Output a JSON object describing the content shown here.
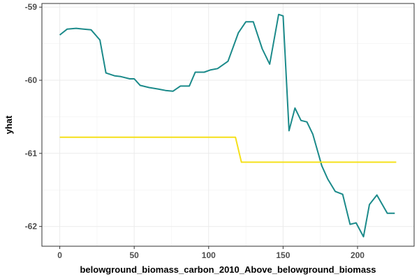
{
  "chart_data": {
    "type": "line",
    "xlabel": "belowground_biomass_carbon_2010_Above_belowground_biomass",
    "ylabel": "yhat",
    "xlim": [
      -12,
      238
    ],
    "ylim": [
      -62.27,
      -58.95
    ],
    "x_ticks": [
      0,
      50,
      100,
      150,
      200
    ],
    "x_tick_labels": [
      "0",
      "50",
      "100",
      "150",
      "200"
    ],
    "y_ticks": [
      -59,
      -60,
      -61,
      -62
    ],
    "y_tick_labels": [
      "-59",
      "-60",
      "-61",
      "-62"
    ],
    "grid": true,
    "legend": "none",
    "series": [
      {
        "color": "#1b8a8a",
        "x": [
          0,
          5,
          11,
          16,
          21,
          27,
          31,
          37,
          41,
          47,
          50,
          54,
          60,
          66,
          71,
          76,
          81,
          87,
          91,
          97,
          101,
          106,
          113,
          120,
          125,
          130,
          136,
          141,
          147,
          150,
          154,
          158,
          162,
          166,
          170,
          176,
          180,
          185,
          190,
          195,
          199,
          204,
          208,
          213,
          220,
          225
        ],
        "y": [
          -59.38,
          -59.3,
          -59.29,
          -59.3,
          -59.31,
          -59.45,
          -59.9,
          -59.94,
          -59.95,
          -59.98,
          -59.98,
          -60.07,
          -60.1,
          -60.12,
          -60.14,
          -60.15,
          -60.08,
          -60.08,
          -59.89,
          -59.89,
          -59.86,
          -59.84,
          -59.74,
          -59.35,
          -59.2,
          -59.2,
          -59.57,
          -59.78,
          -59.1,
          -59.12,
          -60.69,
          -60.38,
          -60.55,
          -60.57,
          -60.74,
          -61.17,
          -61.35,
          -61.52,
          -61.56,
          -61.97,
          -61.95,
          -62.14,
          -61.7,
          -61.57,
          -61.82,
          -61.82
        ]
      },
      {
        "color": "#f5e019",
        "x": [
          0,
          118,
          122,
          226
        ],
        "y": [
          -60.78,
          -60.78,
          -61.12,
          -61.12
        ]
      }
    ]
  }
}
